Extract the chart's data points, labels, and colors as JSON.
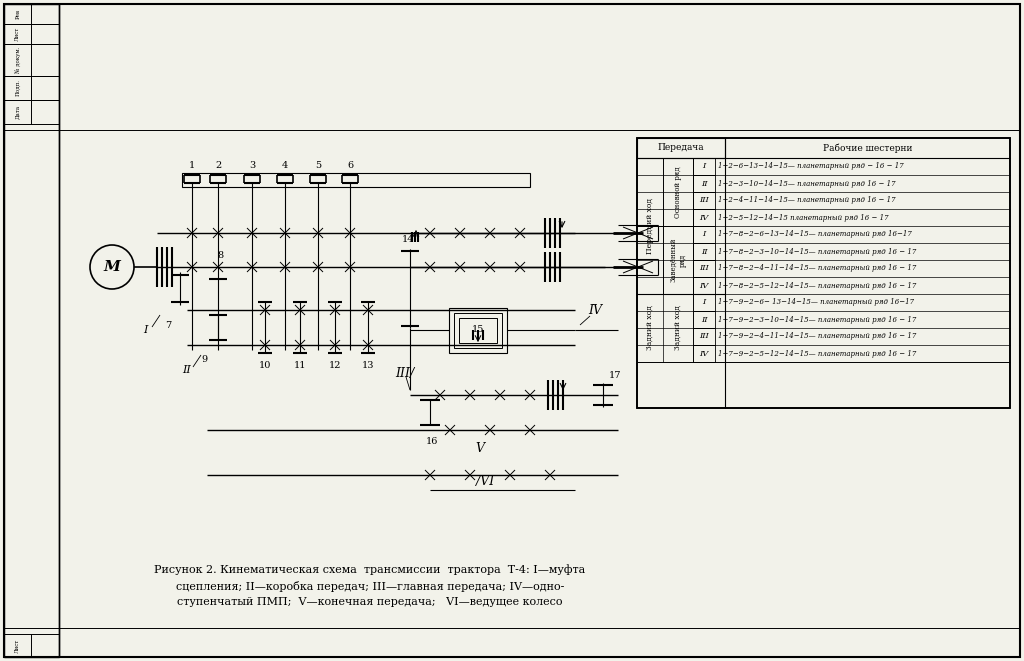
{
  "bg_color": "#f2f2ea",
  "line_color": "#000000",
  "caption_line1": "Рисунок 2. Кинематическая схема  трансмиссии  трактора  Т-4: I—муфта",
  "caption_line2": "сцепления; II—коробка передач; III—главная передача; IV—одно-",
  "caption_line3": "ступенчатый ПМП;  V—конечная передача;   VI—ведущее колесо",
  "table_header_передача": "Передача",
  "table_header_шестерни": "Рабочие шестерни",
  "передний_ход": "Передний ход",
  "задний_ход": "Задний ход",
  "основной_ряд": "Основной ряд",
  "заведённый_ряд": "Заведённый\nряд",
  "forward_basic": [
    "1−2−6−13−14−15— планетарный ряд − 16 − 17",
    "1−2−3−10−14−15— планетарный ряд 16 − 17",
    "1−2−4−11−14−15— планетарный ряд 16 − 17",
    "1−2−5−12−14−15 планетарный ряд 16 − 17"
  ],
  "forward_zaveden": [
    "1−7−8−2−6−13−14−15— планетарный ряд 16−17",
    "1−7−8−2−3−10−14−15— планетарный ряд 16 − 17",
    "1−7−8−2−4−11−14−15— планетарный ряд 16 − 17",
    "1−7−8−2−5−12−14−15— планетарный ряд 16 − 17"
  ],
  "backward": [
    "1−7−9−2−6− 13−14−15— планетарный ряд 16−17",
    "1−7−9−2−3−10−14−15— планетарный ряд 16 − 17",
    "1−7−9−2−4−11−14−15— планетарный ряд 16 − 17",
    "1−7−9−2−5−12−14−15— планетарный ряд 16 − 17"
  ]
}
